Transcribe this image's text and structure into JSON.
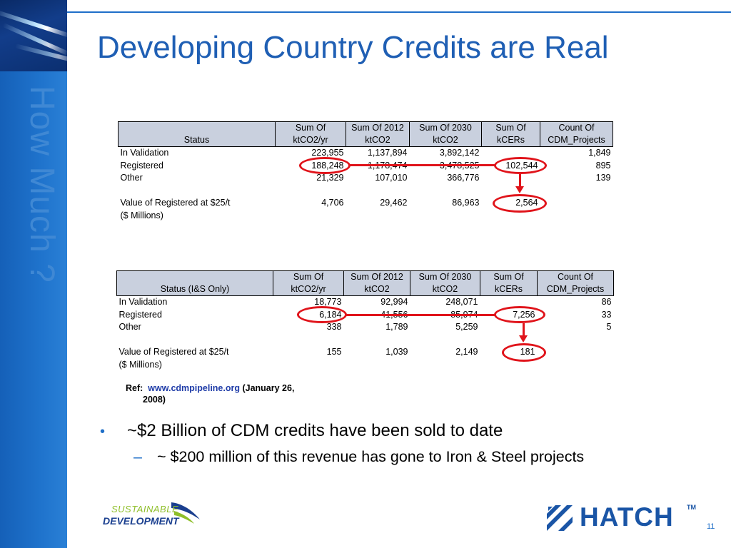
{
  "slide": {
    "sidebar_title": "How Much ?",
    "title": "Developing Country Credits are Real",
    "page_number": "11"
  },
  "table1": {
    "headers": [
      "Status",
      "Sum Of ktCO2/yr",
      "Sum Of 2012 ktCO2",
      "Sum Of 2030 ktCO2",
      "Sum Of kCERs",
      "Count Of CDM_Projects"
    ],
    "rows": [
      [
        "In Validation",
        "223,955",
        "1,137,894",
        "3,892,142",
        "",
        "1,849"
      ],
      [
        "Registered",
        "188,248",
        "1,178,474",
        "3,478,525",
        "102,544",
        "895"
      ],
      [
        "Other",
        "21,329",
        "107,010",
        "366,776",
        "",
        "139"
      ]
    ],
    "value_label_1": "Value of Registered at $25/t",
    "value_label_2": "($ Millions)",
    "value_row": [
      "4,706",
      "29,462",
      "86,963",
      "2,564"
    ]
  },
  "table2": {
    "headers": [
      "Status (I&S Only)",
      "Sum Of ktCO2/yr",
      "Sum Of 2012 ktCO2",
      "Sum Of 2030 ktCO2",
      "Sum Of kCERs",
      "Count Of CDM_Projects"
    ],
    "rows": [
      [
        "In Validation",
        "18,773",
        "92,994",
        "248,071",
        "",
        "86"
      ],
      [
        "Registered",
        "6,184",
        "41,556",
        "85,974",
        "7,256",
        "33"
      ],
      [
        "Other",
        "338",
        "1,789",
        "5,259",
        "",
        "5"
      ]
    ],
    "value_label_1": "Value of Registered at $25/t",
    "value_label_2": "($ Millions)",
    "value_row": [
      "155",
      "1,039",
      "2,149",
      "181"
    ]
  },
  "reference": {
    "label": "Ref:",
    "link": "www.cdmpipeline.org",
    "date_part1": "(January 26,",
    "date_part2": "2008)"
  },
  "bullets": {
    "main": "~$2 Billion of CDM credits have been sold to date",
    "sub": "~ $200 million of this revenue has gone to Iron & Steel projects",
    "main_mark": "•",
    "sub_mark": "–"
  },
  "logos": {
    "sd_top": "SUSTAINABLE",
    "sd_bottom": "DEVELOPMENT",
    "hatch": "HATCH",
    "hatch_tm": "TM"
  },
  "colors": {
    "title_blue": "#1f5fb4",
    "header_fill": "#c9d0de",
    "highlight_red": "#e0141b",
    "sidebar_blue": "#1f73cc"
  }
}
